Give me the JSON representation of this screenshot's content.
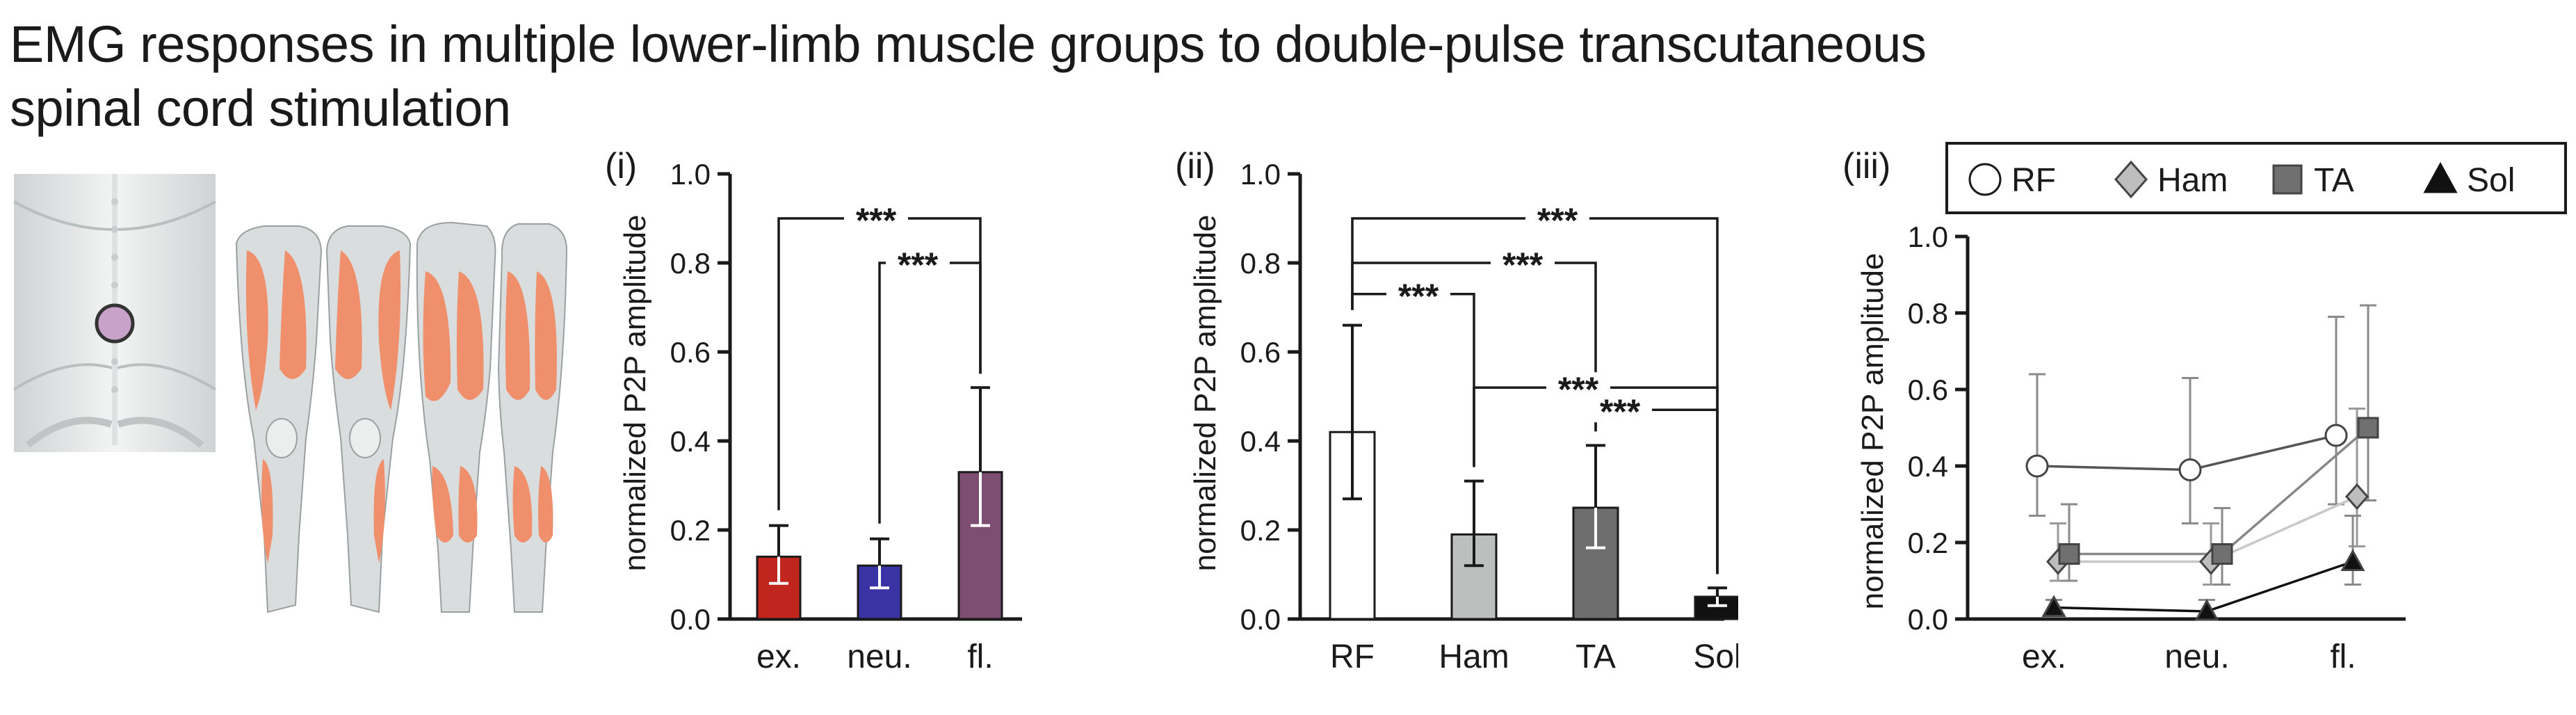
{
  "title": {
    "line1": "EMG responses in multiple lower-limb muscle groups to double-pulse transcutaneous",
    "line2": "spinal cord stimulation"
  },
  "illustration": {
    "icon": "spine-and-legs-icon",
    "muscle_color": "#ef8f6c",
    "stimulation_dot_color": "#c8a2c8"
  },
  "chart_data": [
    {
      "panel": "(i)",
      "type": "bar",
      "categories": [
        "ex.",
        "neu.",
        "fl."
      ],
      "values": [
        0.14,
        0.12,
        0.33
      ],
      "err_low": [
        0.08,
        0.07,
        0.21
      ],
      "err_high": [
        0.21,
        0.18,
        0.52
      ],
      "colors": [
        "#c0251e",
        "#3a33a6",
        "#7d4e72"
      ],
      "ylabel": "normalized P2P amplitude",
      "ylim": [
        0,
        1.0
      ],
      "yticks": [
        "0.0",
        "0.2",
        "0.4",
        "0.6",
        "0.8",
        "1.0"
      ],
      "significance": [
        {
          "from": 0,
          "to": 2,
          "label": "***",
          "y": 0.9
        },
        {
          "from": 1,
          "to": 2,
          "label": "***",
          "y": 0.8
        }
      ]
    },
    {
      "panel": "(ii)",
      "type": "bar",
      "categories": [
        "RF",
        "Ham",
        "TA",
        "Sol"
      ],
      "values": [
        0.42,
        0.19,
        0.25,
        0.05
      ],
      "err_low": [
        0.27,
        0.12,
        0.16,
        0.03
      ],
      "err_high": [
        0.66,
        0.31,
        0.39,
        0.07
      ],
      "colors": [
        "#ffffff",
        "#bdbfbe",
        "#6e6e6e",
        "#111111"
      ],
      "ylabel": "normalized P2P amplitude",
      "ylim": [
        0,
        1.0
      ],
      "yticks": [
        "0.0",
        "0.2",
        "0.4",
        "0.6",
        "0.8",
        "1.0"
      ],
      "significance": [
        {
          "from": 0,
          "to": 3,
          "label": "***",
          "y": 0.9
        },
        {
          "from": 0,
          "to": 2,
          "label": "***",
          "y": 0.8
        },
        {
          "from": 0,
          "to": 1,
          "label": "***",
          "y": 0.73
        },
        {
          "from": 1,
          "to": 3,
          "label": "***",
          "y": 0.52
        },
        {
          "from": 2,
          "to": 3,
          "label": "***",
          "y": 0.47
        }
      ]
    },
    {
      "panel": "(iii)",
      "type": "line",
      "categories": [
        "ex.",
        "neu.",
        "fl."
      ],
      "ylabel": "normalized P2P amplitude",
      "ylim": [
        0,
        1.0
      ],
      "yticks": [
        "0.0",
        "0.2",
        "0.4",
        "0.6",
        "0.8",
        "1.0"
      ],
      "legend_position": "top",
      "series": [
        {
          "name": "RF",
          "marker": "circle",
          "color": "#ffffff",
          "line": "#555555",
          "values": [
            0.4,
            0.39,
            0.48
          ],
          "err_low": [
            0.27,
            0.25,
            0.3
          ],
          "err_high": [
            0.64,
            0.63,
            0.79
          ]
        },
        {
          "name": "Ham",
          "marker": "diamond",
          "color": "#bdbdbd",
          "line": "#c8c8c8",
          "values": [
            0.15,
            0.15,
            0.32
          ],
          "err_low": [
            0.1,
            0.09,
            0.19
          ],
          "err_high": [
            0.25,
            0.25,
            0.55
          ]
        },
        {
          "name": "TA",
          "marker": "square",
          "color": "#707070",
          "line": "#888888",
          "values": [
            0.17,
            0.17,
            0.5
          ],
          "err_low": [
            0.1,
            0.09,
            0.31
          ],
          "err_high": [
            0.3,
            0.29,
            0.82
          ]
        },
        {
          "name": "Sol",
          "marker": "triangle",
          "color": "#111111",
          "line": "#111111",
          "values": [
            0.03,
            0.02,
            0.15
          ],
          "err_low": [
            0.02,
            0.01,
            0.09
          ],
          "err_high": [
            0.05,
            0.05,
            0.27
          ]
        }
      ]
    }
  ]
}
